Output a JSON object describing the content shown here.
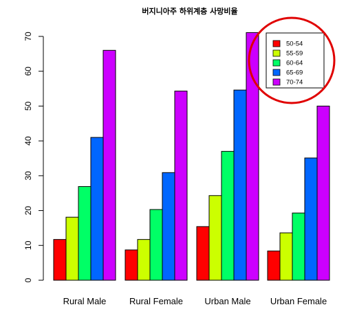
{
  "chart_data": {
    "type": "bar",
    "title": "버지니아주 하위계층 사망비율",
    "categories": [
      "Rural Male",
      "Rural Female",
      "Urban Male",
      "Urban Female"
    ],
    "series": [
      {
        "name": "50-54",
        "color": "#ff0000",
        "values": [
          11.7,
          8.7,
          15.4,
          8.4
        ]
      },
      {
        "name": "55-59",
        "color": "#ccff00",
        "values": [
          18.1,
          11.7,
          24.3,
          13.6
        ]
      },
      {
        "name": "60-64",
        "color": "#00ff66",
        "values": [
          26.9,
          20.3,
          37.0,
          19.3
        ]
      },
      {
        "name": "65-69",
        "color": "#0066ff",
        "values": [
          41.0,
          30.9,
          54.6,
          35.1
        ]
      },
      {
        "name": "70-74",
        "color": "#cc00ff",
        "values": [
          66.0,
          54.3,
          71.1,
          50.0
        ]
      }
    ],
    "y_ticks": [
      "0",
      "10",
      "20",
      "30",
      "40",
      "50",
      "60",
      "70"
    ],
    "ylim": [
      0,
      72
    ],
    "legend_position": "top-right",
    "legend_highlight_color": "#e00000",
    "grid": false
  }
}
